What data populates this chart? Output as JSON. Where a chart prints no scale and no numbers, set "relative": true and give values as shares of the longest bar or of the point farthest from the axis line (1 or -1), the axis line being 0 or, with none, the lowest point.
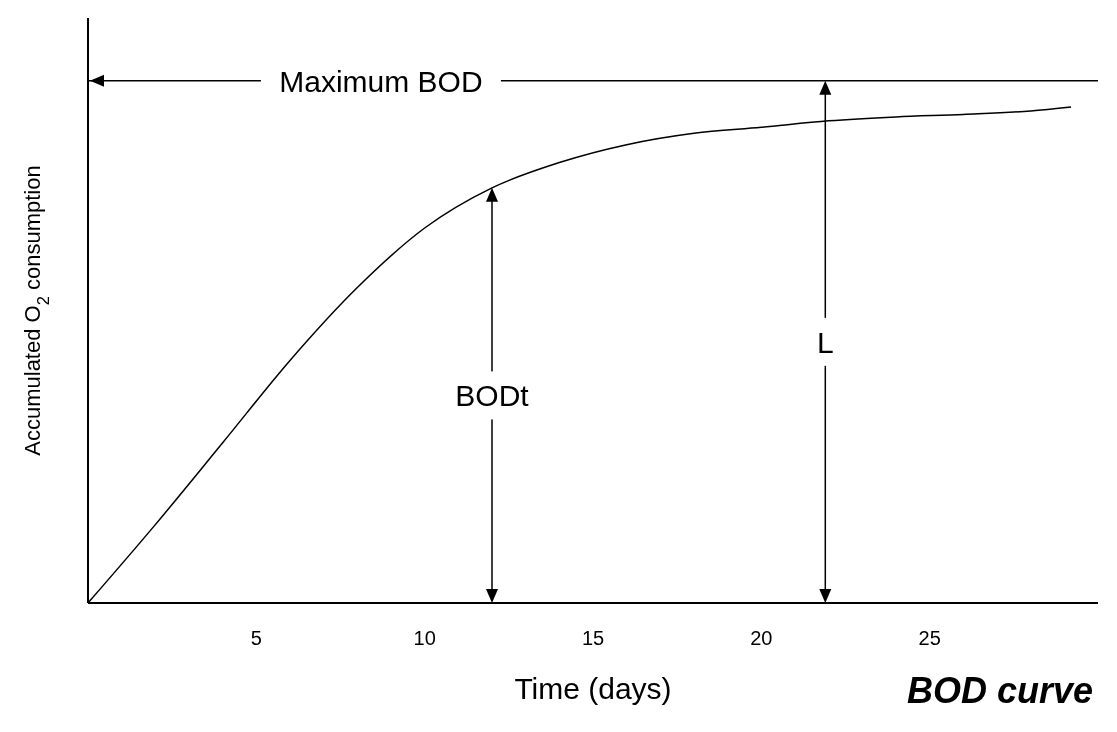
{
  "chart_data": {
    "type": "line",
    "title": "BOD curve",
    "xlabel": "Time (days)",
    "ylabel": "Accumulated O$_{2}$ consumption",
    "relative": true,
    "color": "#000000",
    "x": [
      0,
      2,
      4,
      6,
      8,
      10,
      12,
      14,
      16,
      18,
      20,
      22,
      24,
      26,
      28,
      29.2
    ],
    "values": [
      0,
      0.158,
      0.323,
      0.489,
      0.636,
      0.756,
      0.837,
      0.888,
      0.924,
      0.947,
      0.959,
      0.972,
      0.98,
      0.985,
      0.992,
      1
    ],
    "xlim": [
      0,
      30
    ],
    "xticks": [
      5,
      10,
      15,
      20,
      25
    ],
    "marker": "none",
    "line_style": "solid",
    "ref_lines": [
      {
        "axis": "y",
        "value": 1.053,
        "label": "Maximum BOD"
      },
      {
        "axis": "x",
        "value": 12,
        "label": "BODt"
      },
      {
        "axis": "x",
        "value": 21.9,
        "label": "L"
      }
    ]
  }
}
